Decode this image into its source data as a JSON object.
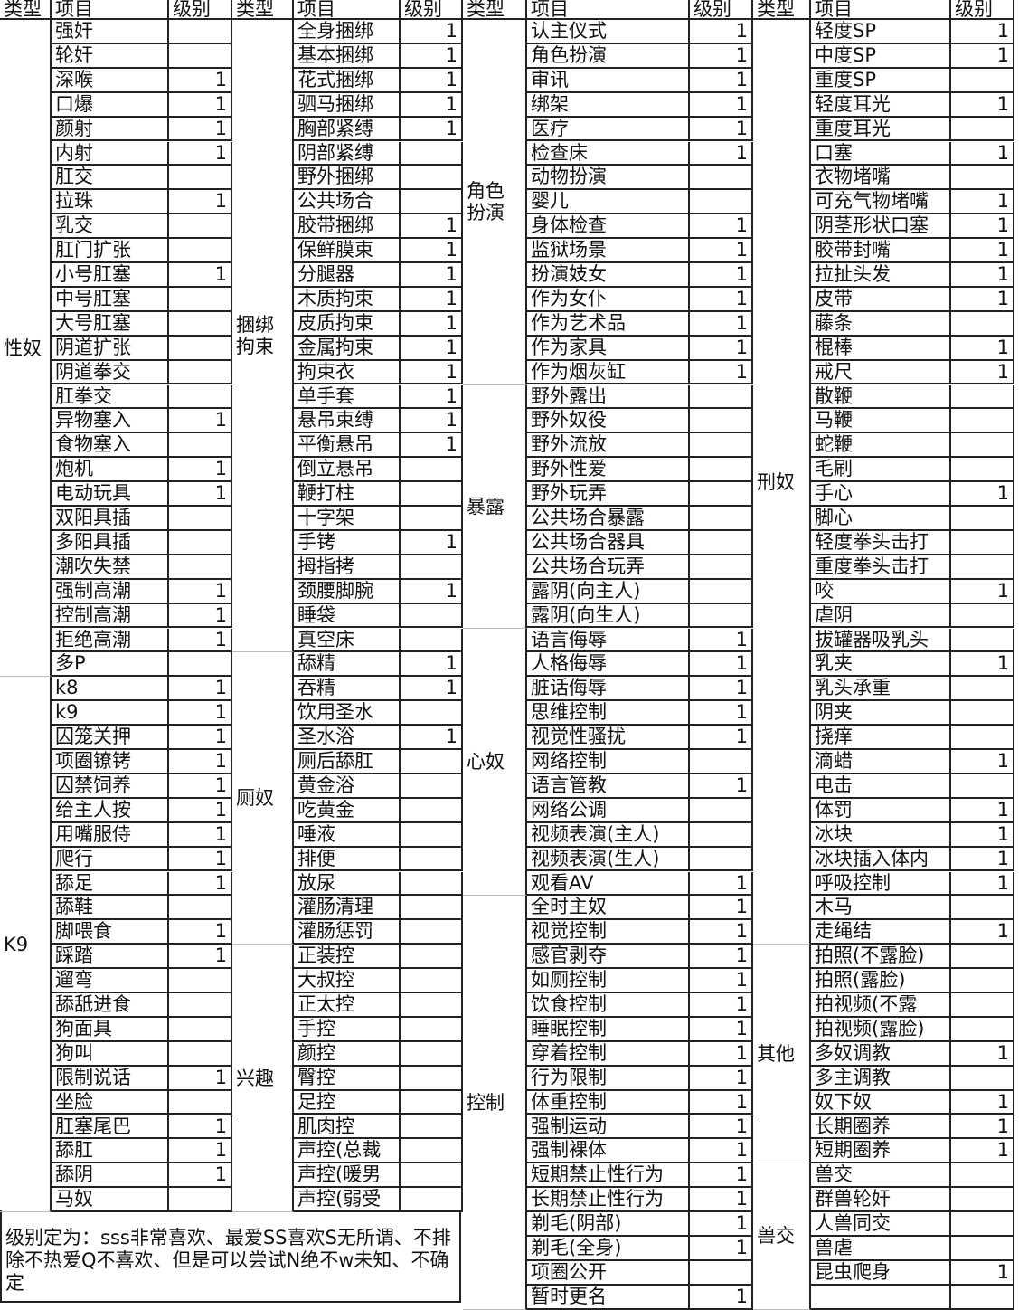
{
  "headers": {
    "type": "类型",
    "item": "项目",
    "level": "级别"
  },
  "sections": [
    {
      "types": [
        {
          "name": "性奴",
          "items": [
            [
              "强奸",
              ""
            ],
            [
              "轮奸",
              ""
            ],
            [
              "深喉",
              "1"
            ],
            [
              "口爆",
              "1"
            ],
            [
              "颜射",
              "1"
            ],
            [
              "内射",
              "1"
            ],
            [
              "肛交",
              ""
            ],
            [
              "拉珠",
              "1"
            ],
            [
              "乳交",
              ""
            ],
            [
              "肛门扩张",
              ""
            ],
            [
              "小号肛塞",
              "1"
            ],
            [
              "中号肛塞",
              ""
            ],
            [
              "大号肛塞",
              ""
            ],
            [
              "阴道扩张",
              ""
            ],
            [
              "阴道拳交",
              ""
            ],
            [
              "肛拳交",
              ""
            ],
            [
              "异物塞入",
              "1"
            ],
            [
              "食物塞入",
              ""
            ],
            [
              "炮机",
              "1"
            ],
            [
              "电动玩具",
              "1"
            ],
            [
              "双阳具插",
              ""
            ],
            [
              "多阳具插",
              ""
            ],
            [
              "潮吹失禁",
              ""
            ],
            [
              "强制高潮",
              "1"
            ],
            [
              "控制高潮",
              "1"
            ],
            [
              "拒绝高潮",
              "1"
            ],
            [
              "多P",
              ""
            ]
          ]
        },
        {
          "name": "K9",
          "items": [
            [
              "k8",
              "1"
            ],
            [
              "k9",
              "1"
            ],
            [
              "囚笼关押",
              "1"
            ],
            [
              "项圈镣铐",
              "1"
            ],
            [
              "囚禁饲养",
              "1"
            ],
            [
              "给主人按",
              "1"
            ],
            [
              "用嘴服侍",
              "1"
            ],
            [
              "爬行",
              "1"
            ],
            [
              "舔足",
              "1"
            ],
            [
              "舔鞋",
              ""
            ],
            [
              "脚喂食",
              "1"
            ],
            [
              "踩踏",
              "1"
            ],
            [
              "遛弯",
              ""
            ],
            [
              "舔舐进食",
              ""
            ],
            [
              "狗面具",
              ""
            ],
            [
              "狗叫",
              ""
            ],
            [
              "限制说话",
              "1"
            ],
            [
              "坐脸",
              ""
            ],
            [
              "肛塞尾巴",
              "1"
            ],
            [
              "舔肛",
              "1"
            ],
            [
              "舔阴",
              "1"
            ],
            [
              "马奴",
              ""
            ]
          ]
        }
      ]
    },
    {
      "types": [
        {
          "name": "捆绑拘束",
          "items": [
            [
              "全身捆绑",
              "1"
            ],
            [
              "基本捆绑",
              "1"
            ],
            [
              "花式捆绑",
              "1"
            ],
            [
              "驷马捆绑",
              "1"
            ],
            [
              "胸部紧缚",
              "1"
            ],
            [
              "阴部紧缚",
              ""
            ],
            [
              "野外捆绑",
              ""
            ],
            [
              "公共场合",
              ""
            ],
            [
              "胶带捆绑",
              "1"
            ],
            [
              "保鲜膜束",
              "1"
            ],
            [
              "分腿器",
              "1"
            ],
            [
              "木质拘束",
              "1"
            ],
            [
              "皮质拘束",
              "1"
            ],
            [
              "金属拘束",
              "1"
            ],
            [
              "拘束衣",
              "1"
            ],
            [
              "单手套",
              "1"
            ],
            [
              "悬吊束缚",
              "1"
            ],
            [
              "平衡悬吊",
              "1"
            ],
            [
              "倒立悬吊",
              ""
            ],
            [
              "鞭打柱",
              ""
            ],
            [
              "十字架",
              ""
            ],
            [
              "手铐",
              "1"
            ],
            [
              "拇指拷",
              ""
            ],
            [
              "颈腰脚腕",
              "1"
            ],
            [
              "睡袋",
              ""
            ],
            [
              "真空床",
              ""
            ]
          ]
        },
        {
          "name": "厕奴",
          "items": [
            [
              "舔精",
              "1"
            ],
            [
              "吞精",
              "1"
            ],
            [
              "饮用圣水",
              ""
            ],
            [
              "圣水浴",
              "1"
            ],
            [
              "厕后舔肛",
              ""
            ],
            [
              "黄金浴",
              ""
            ],
            [
              "吃黄金",
              ""
            ],
            [
              "唾液",
              ""
            ],
            [
              "排便",
              ""
            ],
            [
              "放尿",
              ""
            ],
            [
              "灌肠清理",
              ""
            ],
            [
              "灌肠惩罚",
              ""
            ]
          ]
        },
        {
          "name": "兴趣",
          "items": [
            [
              "正装控",
              ""
            ],
            [
              "大叔控",
              ""
            ],
            [
              "正太控",
              ""
            ],
            [
              "手控",
              ""
            ],
            [
              "颜控",
              ""
            ],
            [
              "臀控",
              ""
            ],
            [
              "足控",
              ""
            ],
            [
              "肌肉控",
              ""
            ],
            [
              "声控(总裁",
              ""
            ],
            [
              "声控(暖男",
              ""
            ],
            [
              "声控(弱受",
              ""
            ]
          ]
        }
      ]
    },
    {
      "types": [
        {
          "name": "角色扮演",
          "items": [
            [
              "认主仪式",
              "1"
            ],
            [
              "角色扮演",
              "1"
            ],
            [
              "审讯",
              "1"
            ],
            [
              "绑架",
              "1"
            ],
            [
              "医疗",
              "1"
            ],
            [
              "检查床",
              "1"
            ],
            [
              "动物扮演",
              ""
            ],
            [
              "婴儿",
              ""
            ],
            [
              "身体检查",
              "1"
            ],
            [
              "监狱场景",
              "1"
            ],
            [
              "扮演妓女",
              "1"
            ],
            [
              "作为女仆",
              "1"
            ],
            [
              "作为艺术品",
              "1"
            ],
            [
              "作为家具",
              "1"
            ],
            [
              "作为烟灰缸",
              "1"
            ]
          ]
        },
        {
          "name": "暴露",
          "items": [
            [
              "野外露出",
              ""
            ],
            [
              "野外奴役",
              ""
            ],
            [
              "野外流放",
              ""
            ],
            [
              "野外性爱",
              ""
            ],
            [
              "野外玩弄",
              ""
            ],
            [
              "公共场合暴露",
              ""
            ],
            [
              "公共场合器具",
              ""
            ],
            [
              "公共场合玩弄",
              ""
            ],
            [
              "露阴(向主人)",
              ""
            ],
            [
              "露阴(向生人)",
              ""
            ]
          ]
        },
        {
          "name": "心奴",
          "items": [
            [
              "语言侮辱",
              "1"
            ],
            [
              "人格侮辱",
              "1"
            ],
            [
              "脏话侮辱",
              "1"
            ],
            [
              "思维控制",
              "1"
            ],
            [
              "视觉性骚扰",
              "1"
            ],
            [
              "网络控制",
              ""
            ],
            [
              "语言管教",
              "1"
            ],
            [
              "网络公调",
              ""
            ],
            [
              "视频表演(主人)",
              ""
            ],
            [
              "视频表演(生人)",
              ""
            ],
            [
              "观看AV",
              "1"
            ]
          ]
        },
        {
          "name": "控制",
          "items": [
            [
              "全时主奴",
              "1"
            ],
            [
              "视觉控制",
              "1"
            ],
            [
              "感官剥夺",
              "1"
            ],
            [
              "如厕控制",
              "1"
            ],
            [
              "饮食控制",
              "1"
            ],
            [
              "睡眠控制",
              "1"
            ],
            [
              "穿着控制",
              "1"
            ],
            [
              "行为限制",
              "1"
            ],
            [
              "体重控制",
              "1"
            ],
            [
              "强制运动",
              "1"
            ],
            [
              "强制裸体",
              "1"
            ],
            [
              "短期禁止性行为",
              "1"
            ],
            [
              "长期禁止性行为",
              "1"
            ],
            [
              "剃毛(阴部)",
              "1"
            ],
            [
              "剃毛(全身)",
              "1"
            ],
            [
              "项圈公开",
              ""
            ],
            [
              "暂时更名",
              "1"
            ]
          ]
        }
      ]
    },
    {
      "types": [
        {
          "name": "刑奴",
          "items": [
            [
              "轻度SP",
              "1"
            ],
            [
              "中度SP",
              "1"
            ],
            [
              "重度SP",
              ""
            ],
            [
              "轻度耳光",
              "1"
            ],
            [
              "重度耳光",
              ""
            ],
            [
              "口塞",
              "1"
            ],
            [
              "衣物堵嘴",
              ""
            ],
            [
              "可充气物堵嘴",
              "1"
            ],
            [
              "阴茎形状口塞",
              "1"
            ],
            [
              "胶带封嘴",
              "1"
            ],
            [
              "拉扯头发",
              "1"
            ],
            [
              "皮带",
              "1"
            ],
            [
              "藤条",
              ""
            ],
            [
              "棍棒",
              "1"
            ],
            [
              "戒尺",
              "1"
            ],
            [
              "散鞭",
              ""
            ],
            [
              "马鞭",
              ""
            ],
            [
              "蛇鞭",
              ""
            ],
            [
              "毛刷",
              ""
            ],
            [
              "手心",
              "1"
            ],
            [
              "脚心",
              ""
            ],
            [
              "轻度拳头击打",
              ""
            ],
            [
              "重度拳头击打",
              ""
            ],
            [
              "咬",
              "1"
            ],
            [
              "虐阴",
              ""
            ],
            [
              "拔罐器吸乳头",
              ""
            ],
            [
              "乳夹",
              "1"
            ],
            [
              "乳头承重",
              ""
            ],
            [
              "阴夹",
              ""
            ],
            [
              "挠痒",
              ""
            ],
            [
              "滴蜡",
              "1"
            ],
            [
              "电击",
              ""
            ],
            [
              "体罚",
              "1"
            ],
            [
              "冰块",
              "1"
            ],
            [
              "冰块插入体内",
              "1"
            ],
            [
              "呼吸控制",
              "1"
            ],
            [
              "木马",
              ""
            ],
            [
              "走绳结",
              "1"
            ]
          ]
        },
        {
          "name": "其他",
          "items": [
            [
              "拍照(不露脸)",
              ""
            ],
            [
              "拍照(露脸)",
              ""
            ],
            [
              "拍视频(不露",
              ""
            ],
            [
              "拍视频(露脸)",
              ""
            ],
            [
              "多奴调教",
              "1"
            ],
            [
              "多主调教",
              ""
            ],
            [
              "奴下奴",
              "1"
            ],
            [
              "长期圈养",
              "1"
            ],
            [
              "短期圈养",
              "1"
            ]
          ]
        },
        {
          "name": "兽交",
          "items": [
            [
              "兽交",
              ""
            ],
            [
              "群兽轮奸",
              ""
            ],
            [
              "人兽同交",
              ""
            ],
            [
              "兽虐",
              ""
            ],
            [
              "昆虫爬身",
              "1"
            ],
            [
              "",
              ""
            ]
          ]
        }
      ]
    }
  ],
  "note": "级别定为：sss非常喜欢、最爱SS喜欢S无所谓、不排除不热爱Q不喜欢、但是可以尝试N绝不w未知、不确定"
}
